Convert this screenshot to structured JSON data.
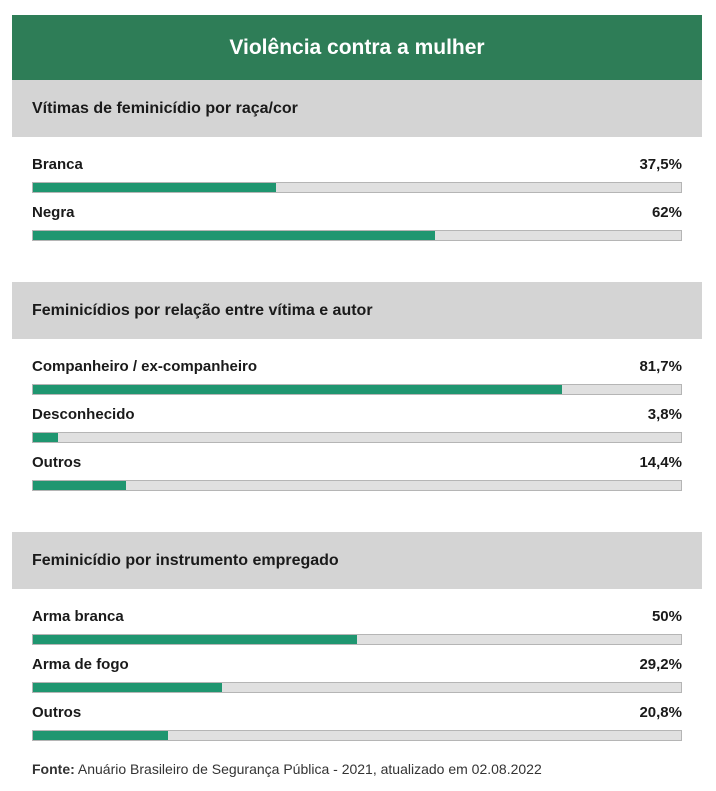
{
  "title": "Violência contra a mulher",
  "colors": {
    "header_bg": "#2e7d57",
    "section_bg": "#d4d4d4",
    "bar_fill": "#1f9670",
    "bar_track": "#e0e0e0"
  },
  "source": {
    "label": "Fonte:",
    "text": "Anuário Brasileiro de Segurança Pública - 2021, atualizado em 02.08.2022"
  },
  "chart_data": [
    {
      "type": "bar",
      "title": "Vítimas de feminicídio por raça/cor",
      "categories": [
        "Branca",
        "Negra"
      ],
      "values": [
        37.5,
        62
      ],
      "value_labels": [
        "37,5%",
        "62%"
      ],
      "ylim": [
        0,
        100
      ]
    },
    {
      "type": "bar",
      "title": "Feminicídios por relação entre vítima e autor",
      "categories": [
        "Companheiro / ex-companheiro",
        "Desconhecido",
        "Outros"
      ],
      "values": [
        81.7,
        3.8,
        14.4
      ],
      "value_labels": [
        "81,7%",
        "3,8%",
        "14,4%"
      ],
      "ylim": [
        0,
        100
      ]
    },
    {
      "type": "bar",
      "title": "Feminicídio por instrumento empregado",
      "categories": [
        "Arma branca",
        "Arma de fogo",
        "Outros"
      ],
      "values": [
        50,
        29.2,
        20.8
      ],
      "value_labels": [
        "50%",
        "29,2%",
        "20,8%"
      ],
      "ylim": [
        0,
        100
      ]
    }
  ]
}
